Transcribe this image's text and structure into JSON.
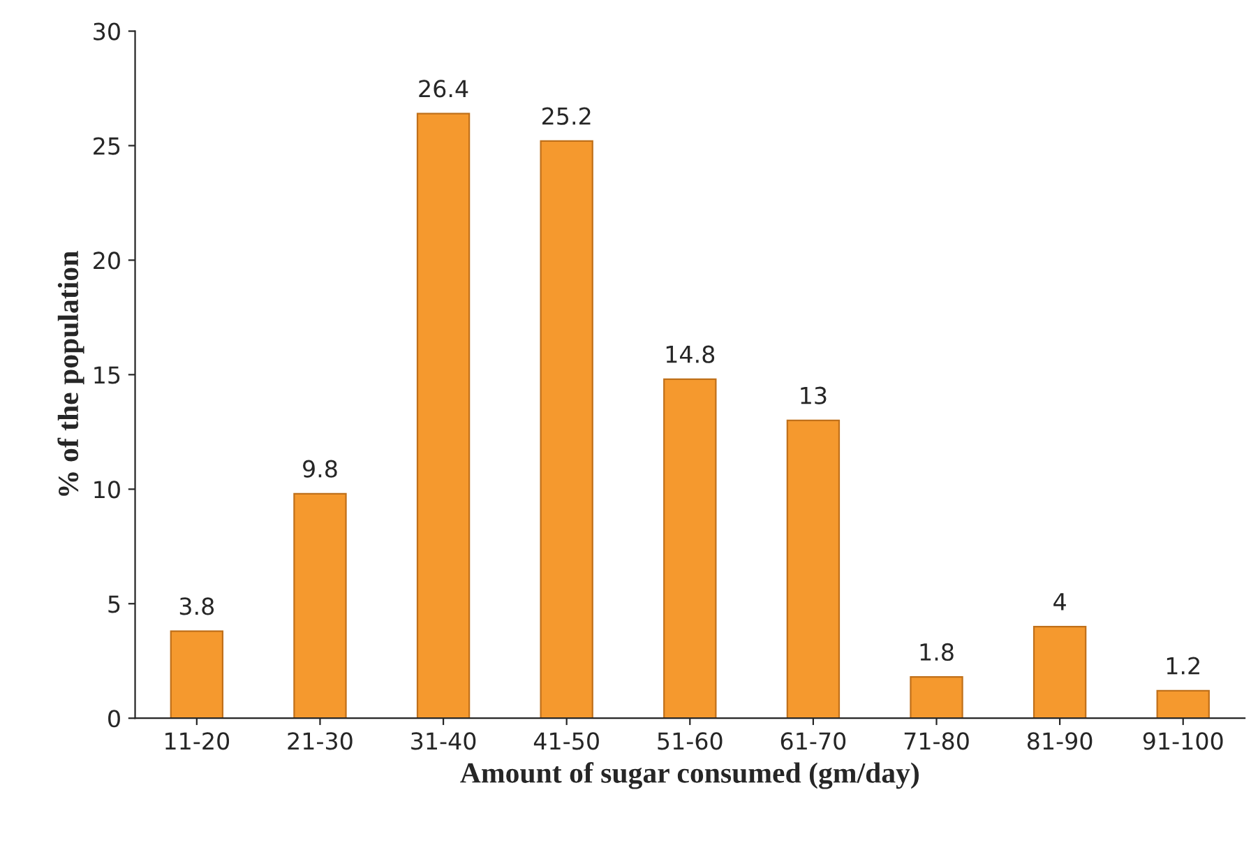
{
  "chart_data": {
    "type": "bar",
    "xlabel": "Amount of sugar consumed (gm/day)",
    "ylabel": "% of the population",
    "categories": [
      "11-20",
      "21-30",
      "31-40",
      "41-50",
      "51-60",
      "61-70",
      "71-80",
      "81-90",
      "91-100"
    ],
    "values": [
      3.8,
      9.8,
      26.4,
      25.2,
      14.8,
      13,
      1.8,
      4,
      1.2
    ],
    "color": "#f5992e",
    "ylim": [
      0,
      30
    ],
    "yticks": [
      0,
      5,
      10,
      15,
      20,
      25,
      30
    ],
    "data_labels": true
  }
}
